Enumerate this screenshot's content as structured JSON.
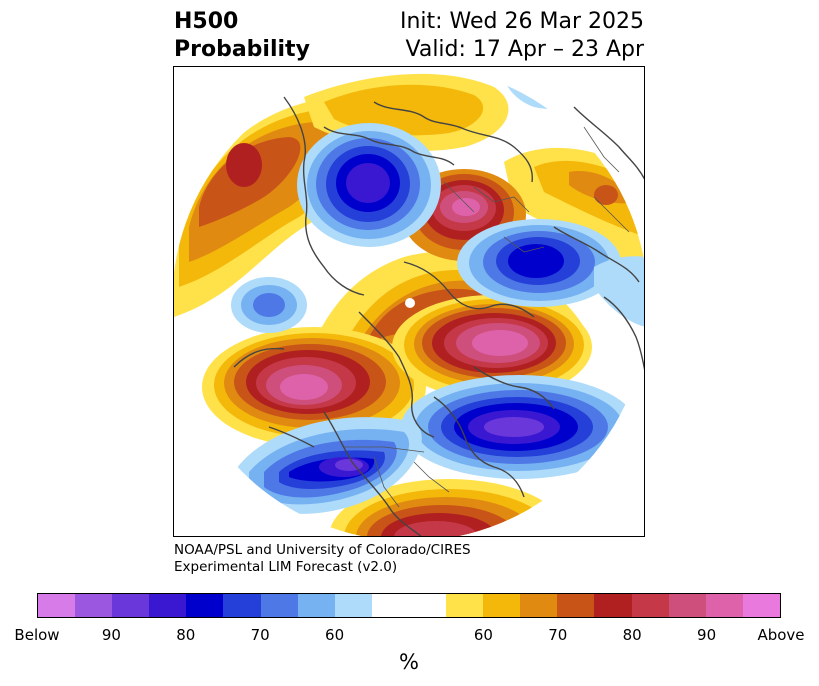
{
  "header": {
    "title_line1": "H500",
    "title_line2": "Probability",
    "init_text": "Init: Wed 26 Mar 2025",
    "valid_text": "Valid: 17 Apr – 23 Apr"
  },
  "credit": {
    "line1": "NOAA/PSL and University of Colorado/CIRES",
    "line2": "Experimental LIM Forecast (v2.0)"
  },
  "colorbar": {
    "colors": [
      "#d77be8",
      "#9b57e0",
      "#6a38da",
      "#3a18d2",
      "#0000cc",
      "#2440d8",
      "#4e78e6",
      "#76b1f2",
      "#aedbfa",
      "#ffffff",
      "#ffffff",
      "#ffe24a",
      "#f4b80a",
      "#e08a12",
      "#c85418",
      "#b02020",
      "#c43848",
      "#cf4f7c",
      "#de62a9",
      "#ea79de"
    ],
    "ticks": [
      "Below",
      "90",
      "80",
      "70",
      "60",
      "60",
      "70",
      "80",
      "90",
      "Above"
    ],
    "unit": "%"
  },
  "map": {
    "palette": {
      "above_60": "#ffe24a",
      "above_65": "#f4b80a",
      "above_70": "#e08a12",
      "above_75": "#c85418",
      "above_80": "#b02020",
      "above_85": "#c43848",
      "above_90": "#cf4f7c",
      "above_95": "#de62a9",
      "below_60": "#aedbfa",
      "below_65": "#76b1f2",
      "below_70": "#4e78e6",
      "below_75": "#2440d8",
      "below_80": "#0000cc",
      "below_85": "#3a18d2",
      "below_90": "#6a38da",
      "coast": "#444444"
    }
  }
}
